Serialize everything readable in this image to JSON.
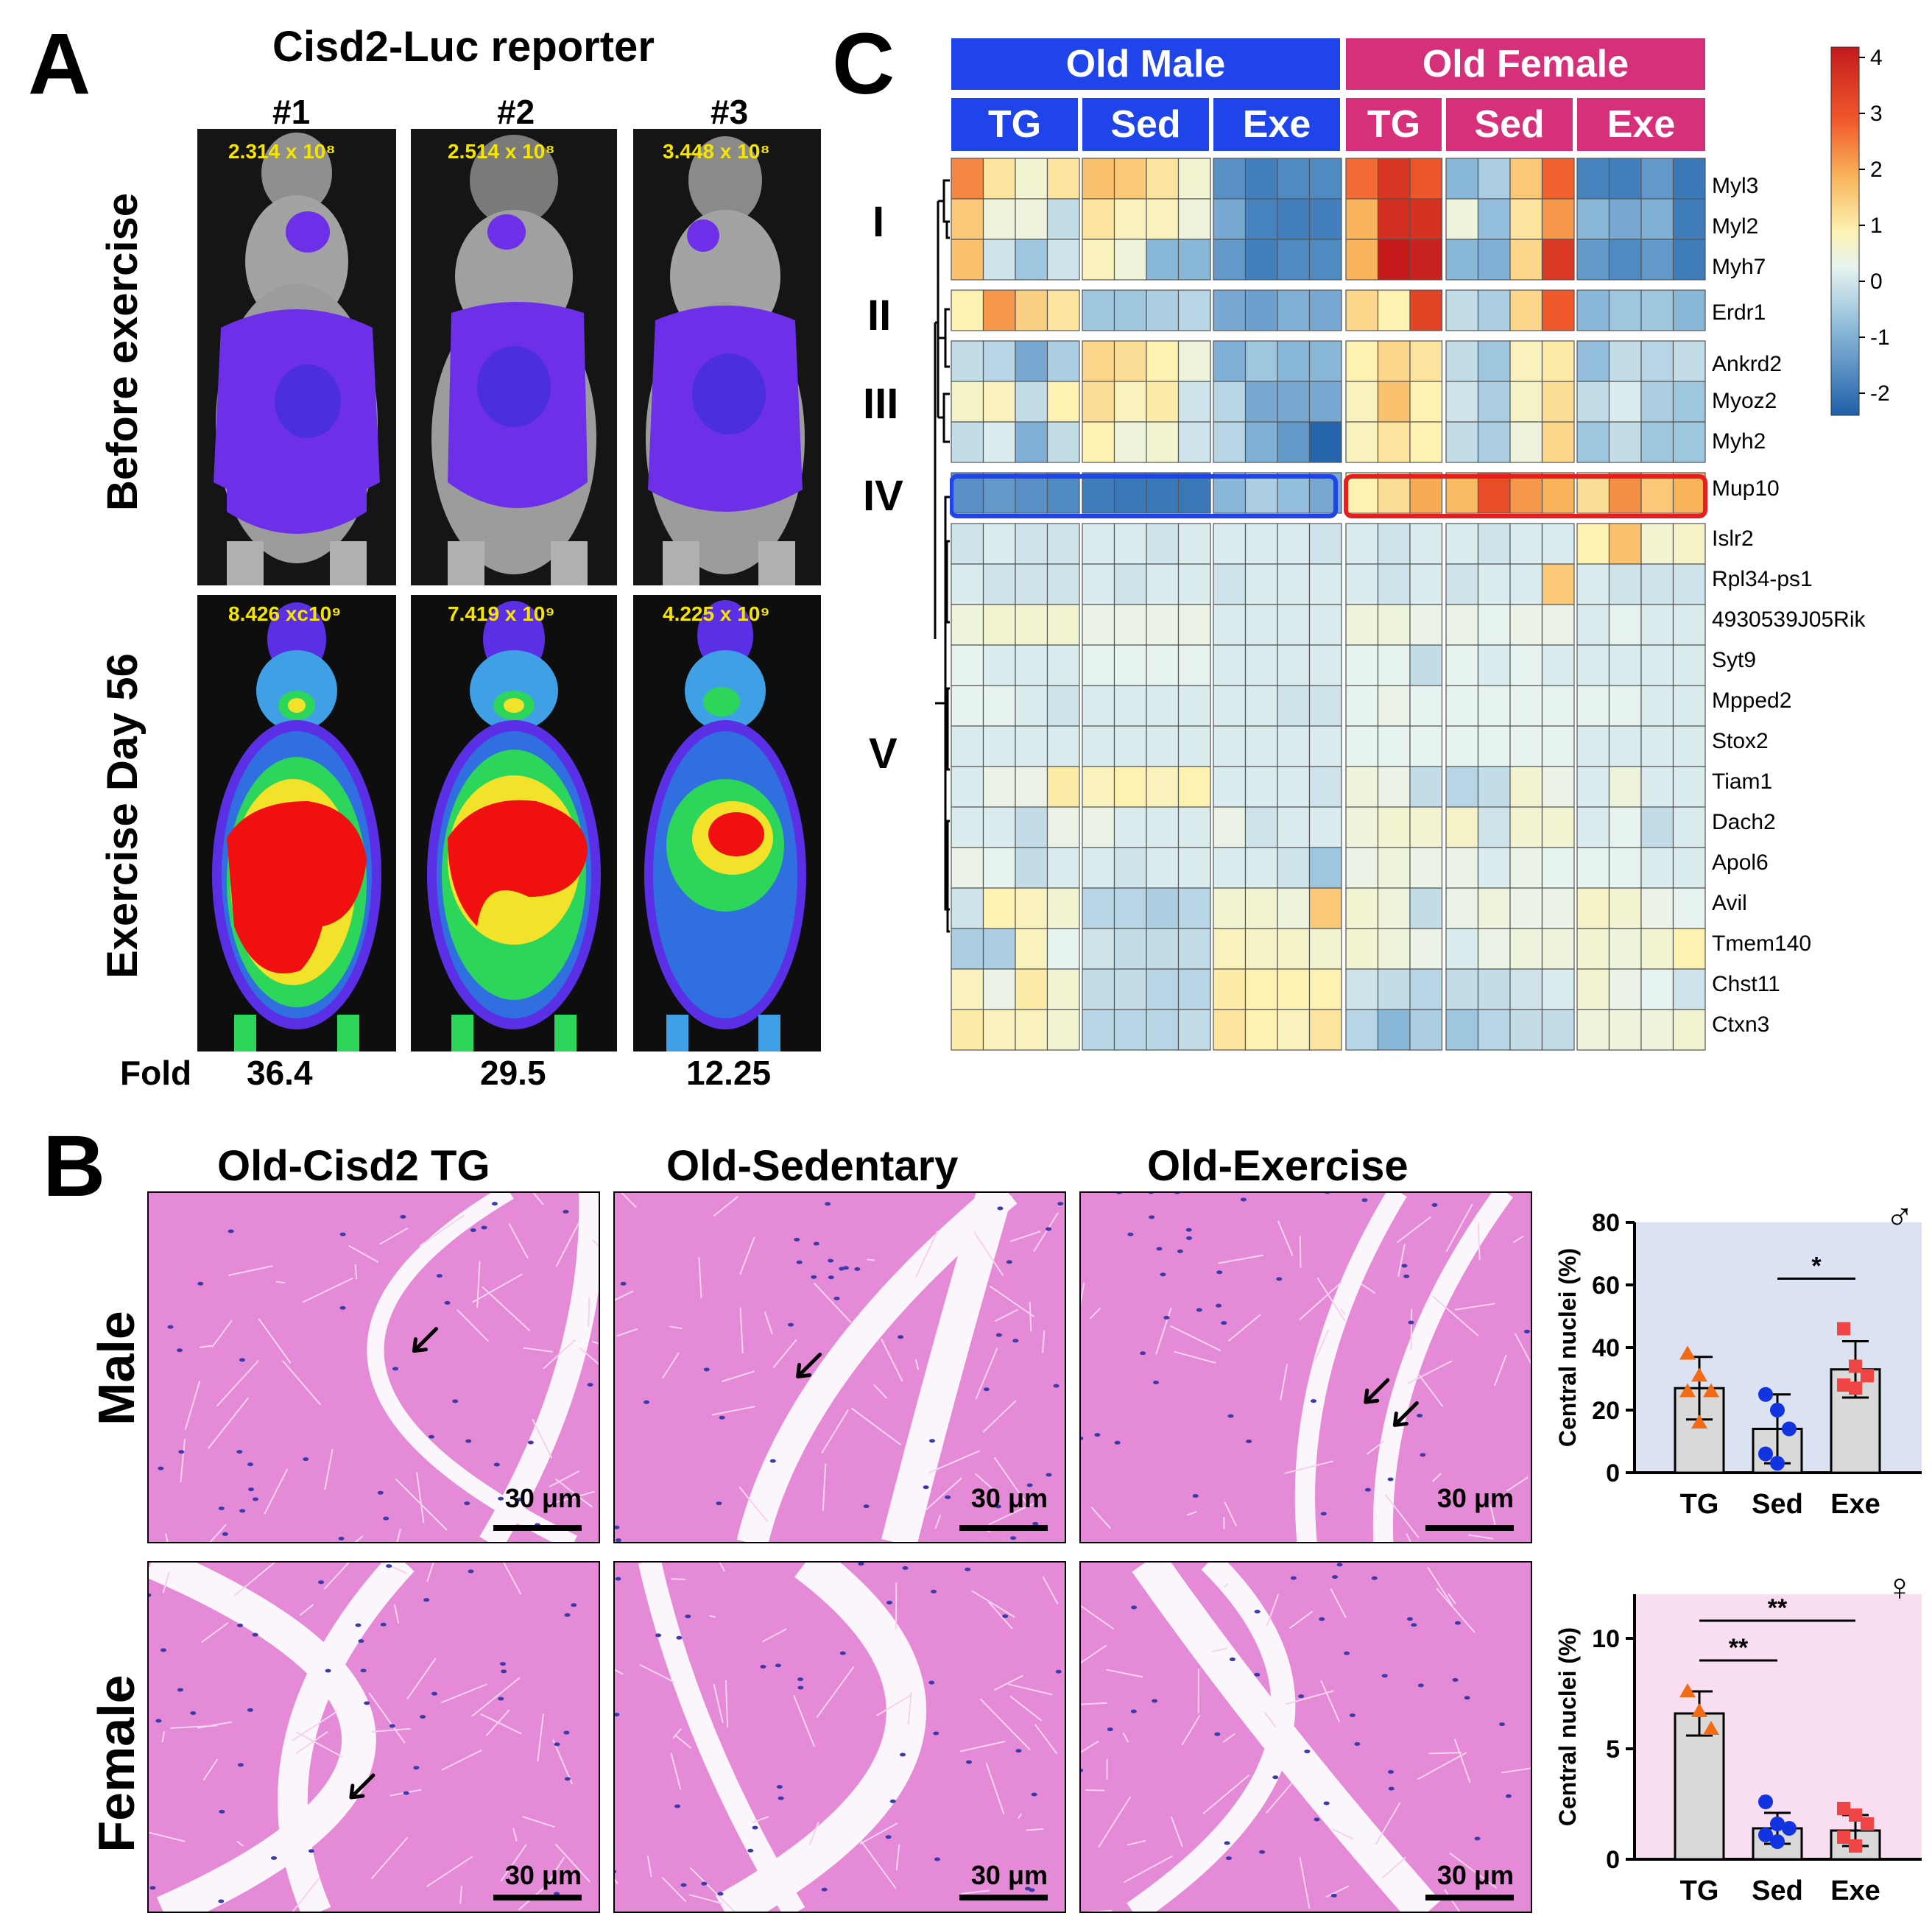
{
  "panels": {
    "a": "A",
    "b": "B",
    "c": "C"
  },
  "panel_a": {
    "title": "Cisd2-Luc reporter",
    "mice": [
      "#1",
      "#2",
      "#3"
    ],
    "row_labels": [
      "Before exercise",
      "Exercise Day 56"
    ],
    "before_values": [
      "2.314 x 10⁸",
      "2.514 x 10⁸",
      "3.448 x 10⁸"
    ],
    "after_values": [
      "8.426 xc10⁹",
      "7.419 x 10⁹",
      "4.225 x 10⁹"
    ],
    "fold_label": "Fold",
    "fold_values": [
      "36.4",
      "29.5",
      "12.25"
    ],
    "value_color": "#f5e400"
  },
  "panel_b": {
    "columns": [
      "Old-Cisd2 TG",
      "Old-Sedentary",
      "Old-Exercise"
    ],
    "rows": [
      "Male",
      "Female"
    ],
    "scale_bar": "30 μm",
    "tissue_color": "#e58ad6"
  },
  "panel_c": {
    "group_headers": [
      {
        "label": "Old Male",
        "color": "#1f45ea"
      },
      {
        "label": "Old Female",
        "color": "#d7307a"
      }
    ],
    "subgroups": [
      "TG",
      "Sed",
      "Exe",
      "TG",
      "Sed",
      "Exe"
    ],
    "clusters": [
      "I",
      "II",
      "III",
      "IV",
      "V"
    ],
    "genes": [
      "Myl3",
      "Myl2",
      "Myh7",
      "Erdr1",
      "Ankrd2",
      "Myoz2",
      "Myh2",
      "Mup10",
      "Islr2",
      "Rpl34-ps1",
      "4930539J05Rik",
      "Syt9",
      "Mpped2",
      "Stox2",
      "Tiam1",
      "Dach2",
      "Apol6",
      "Avil",
      "Tmem140",
      "Chst11",
      "Ctxn3"
    ],
    "colorbar_ticks": [
      "4",
      "3",
      "2",
      "1",
      "0",
      "-1",
      "-2"
    ],
    "highlight_colors": {
      "male": "#1f45ea",
      "female": "#e81e1e"
    }
  },
  "chart_data": [
    {
      "type": "bar",
      "sex_symbol": "♂",
      "categories": [
        "TG",
        "Sed",
        "Exe"
      ],
      "values": [
        27,
        14,
        33
      ],
      "errors": [
        10,
        11,
        9
      ],
      "points": [
        [
          38,
          31,
          26,
          26,
          16
        ],
        [
          25,
          20,
          14,
          6,
          3
        ],
        [
          46,
          34,
          31,
          28,
          27
        ]
      ],
      "point_colors": [
        "#f26a13",
        "#1233e0",
        "#f04545"
      ],
      "ylabel": "Central nuclei (%)",
      "ylim": [
        0,
        80
      ],
      "yticks": [
        "0",
        "20",
        "40",
        "60",
        "80"
      ],
      "significance": [
        {
          "from": 1,
          "to": 2,
          "label": "*"
        }
      ],
      "background": "#dbe3f2"
    },
    {
      "type": "bar",
      "sex_symbol": "♀",
      "categories": [
        "TG",
        "Sed",
        "Exe"
      ],
      "values": [
        6.6,
        1.4,
        1.3
      ],
      "errors": [
        1.0,
        0.7,
        0.7
      ],
      "points": [
        [
          7.6,
          6.7,
          5.9
        ],
        [
          2.6,
          1.6,
          1.4,
          1.1,
          0.8
        ],
        [
          2.3,
          2.0,
          1.6,
          1.0,
          0.6
        ]
      ],
      "point_colors": [
        "#f26a13",
        "#1233e0",
        "#f04545"
      ],
      "ylabel": "Central nuclei (%)",
      "ylim": [
        0,
        12
      ],
      "yticks": [
        "0",
        "5",
        "10"
      ],
      "significance": [
        {
          "from": 0,
          "to": 1,
          "label": "**"
        },
        {
          "from": 0,
          "to": 2,
          "label": "**"
        }
      ],
      "background": "#f9ddf1"
    }
  ]
}
